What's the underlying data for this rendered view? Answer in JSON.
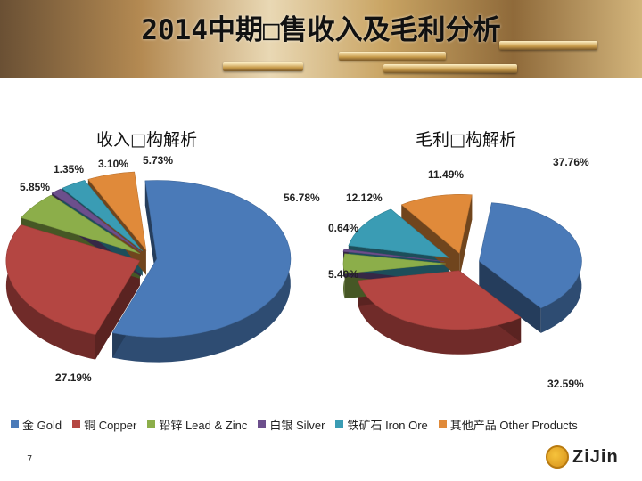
{
  "page": {
    "title": "2014中期□售收入及毛利分析",
    "page_number": "7",
    "logo_text": "ZiJin"
  },
  "legend": [
    {
      "label": "金 Gold",
      "color": "#4a7ab8"
    },
    {
      "label": "铜 Copper",
      "color": "#b44642"
    },
    {
      "label": "铅锌 Lead & Zinc",
      "color": "#8cae4a"
    },
    {
      "label": "白银 Silver",
      "color": "#6c4f8c"
    },
    {
      "label": "铁矿石 Iron Ore",
      "color": "#3a9cb4"
    },
    {
      "label": "其他产品 Other Products",
      "color": "#e08a3a"
    }
  ],
  "chart_data": [
    {
      "type": "pie",
      "title": "收入□构解析",
      "categories": [
        "金 Gold",
        "铜 Copper",
        "铅锌 Lead & Zinc",
        "白银 Silver",
        "铁矿石 Iron Ore",
        "其他产品 Other Products"
      ],
      "values": [
        56.78,
        27.19,
        5.85,
        1.35,
        3.1,
        5.73
      ],
      "value_labels": [
        "56.78%",
        "27.19%",
        "5.85%",
        "1.35%",
        "3.10%",
        "5.73%"
      ]
    },
    {
      "type": "pie",
      "title": "毛利□构解析",
      "categories": [
        "金 Gold",
        "铜 Copper",
        "铅锌 Lead & Zinc",
        "白银 Silver",
        "铁矿石 Iron Ore",
        "其他产品 Other Products"
      ],
      "values": [
        37.76,
        32.59,
        5.4,
        0.64,
        12.12,
        11.49
      ],
      "value_labels": [
        "37.76%",
        "32.59%",
        "5.40%",
        "0.64%",
        "12.12%",
        "11.49%"
      ]
    }
  ]
}
